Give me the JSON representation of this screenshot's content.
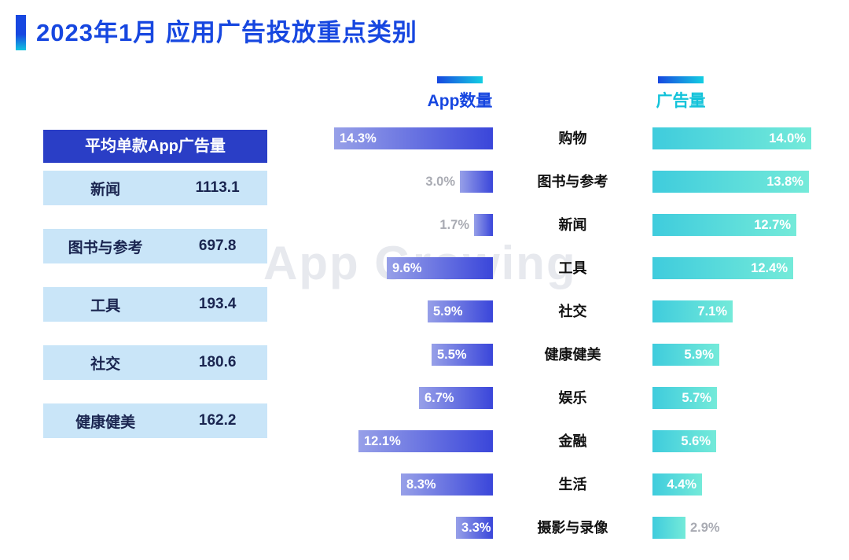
{
  "title": "2023年1月 应用广告投放重点类别",
  "watermark": "App Growing",
  "table": {
    "header": "平均单款App广告量",
    "rows": [
      {
        "label": "新闻",
        "value": "1113.1"
      },
      {
        "label": "图书与参考",
        "value": "697.8"
      },
      {
        "label": "工具",
        "value": "193.4"
      },
      {
        "label": "社交",
        "value": "180.6"
      },
      {
        "label": "健康健美",
        "value": "162.2"
      }
    ]
  },
  "chart_data": {
    "type": "bar",
    "subtype": "tornado",
    "orientation": "horizontal",
    "value_suffix": "%",
    "xlim": [
      0,
      14.5
    ],
    "grid": false,
    "categories": [
      "购物",
      "图书与参考",
      "新闻",
      "工具",
      "社交",
      "健康健美",
      "娱乐",
      "金融",
      "生活",
      "摄影与录像"
    ],
    "series": [
      {
        "name": "App数量",
        "direction": "left",
        "values": [
          14.3,
          3.0,
          1.7,
          9.6,
          5.9,
          5.5,
          6.7,
          12.1,
          8.3,
          3.3
        ],
        "labels": [
          "14.3%",
          "3.0%",
          "1.7%",
          "9.6%",
          "5.9%",
          "5.5%",
          "6.7%",
          "12.1%",
          "8.3%",
          "3.3%"
        ]
      },
      {
        "name": "广告量",
        "direction": "right",
        "values": [
          14.0,
          13.8,
          12.7,
          12.4,
          7.1,
          5.9,
          5.7,
          5.6,
          4.4,
          2.9
        ],
        "labels": [
          "14.0%",
          "13.8%",
          "12.7%",
          "12.4%",
          "7.1%",
          "5.9%",
          "5.7%",
          "5.6%",
          "4.4%",
          "2.9%"
        ]
      }
    ]
  },
  "colors": {
    "title_blue": "#1747e0",
    "cyan_accent": "#14cfe2",
    "table_header_bg": "#2a3ec6",
    "table_row_bg": "#c9e5f8",
    "left_bar_gradient": [
      "#97a0e8",
      "#3a46da"
    ],
    "right_bar_gradient": [
      "#3fccdd",
      "#74ead9"
    ],
    "outside_label_gray": "#a9abb3"
  }
}
